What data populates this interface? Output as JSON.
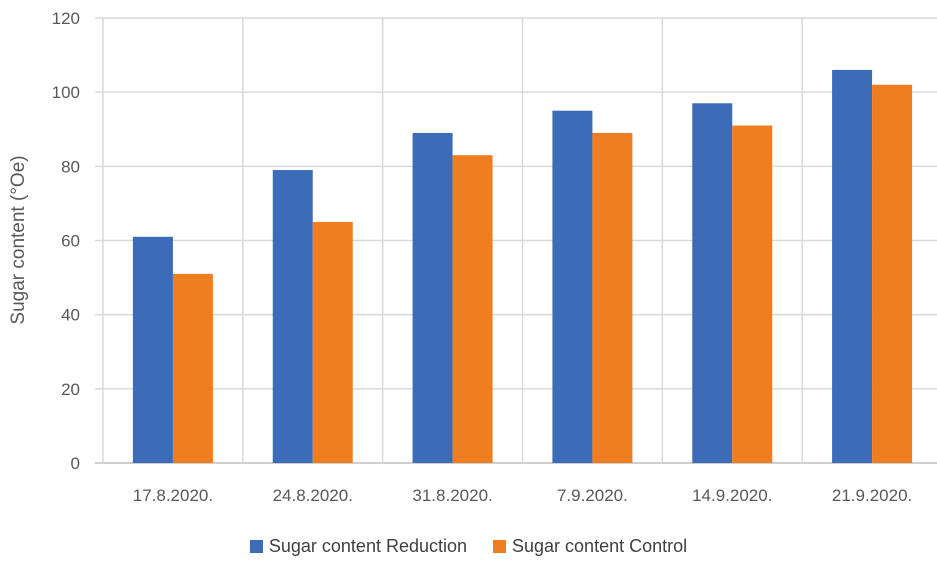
{
  "chart_data": {
    "type": "bar",
    "categories": [
      "17.8.2020.",
      "24.8.2020.",
      "31.8.2020.",
      "7.9.2020.",
      "14.9.2020.",
      "21.9.2020."
    ],
    "series": [
      {
        "name": "Sugar content Reduction",
        "values": [
          61,
          79,
          89,
          95,
          97,
          106
        ],
        "color": "#3c6bb8"
      },
      {
        "name": "Sugar content Control",
        "values": [
          51,
          65,
          83,
          89,
          91,
          102
        ],
        "color": "#ef7d22"
      }
    ],
    "ylabel": "Sugar content (°Oe)",
    "ylim": [
      0,
      120
    ],
    "yticks": [
      0,
      20,
      40,
      60,
      80,
      100,
      120
    ],
    "grid": true,
    "legend": "bottom"
  }
}
